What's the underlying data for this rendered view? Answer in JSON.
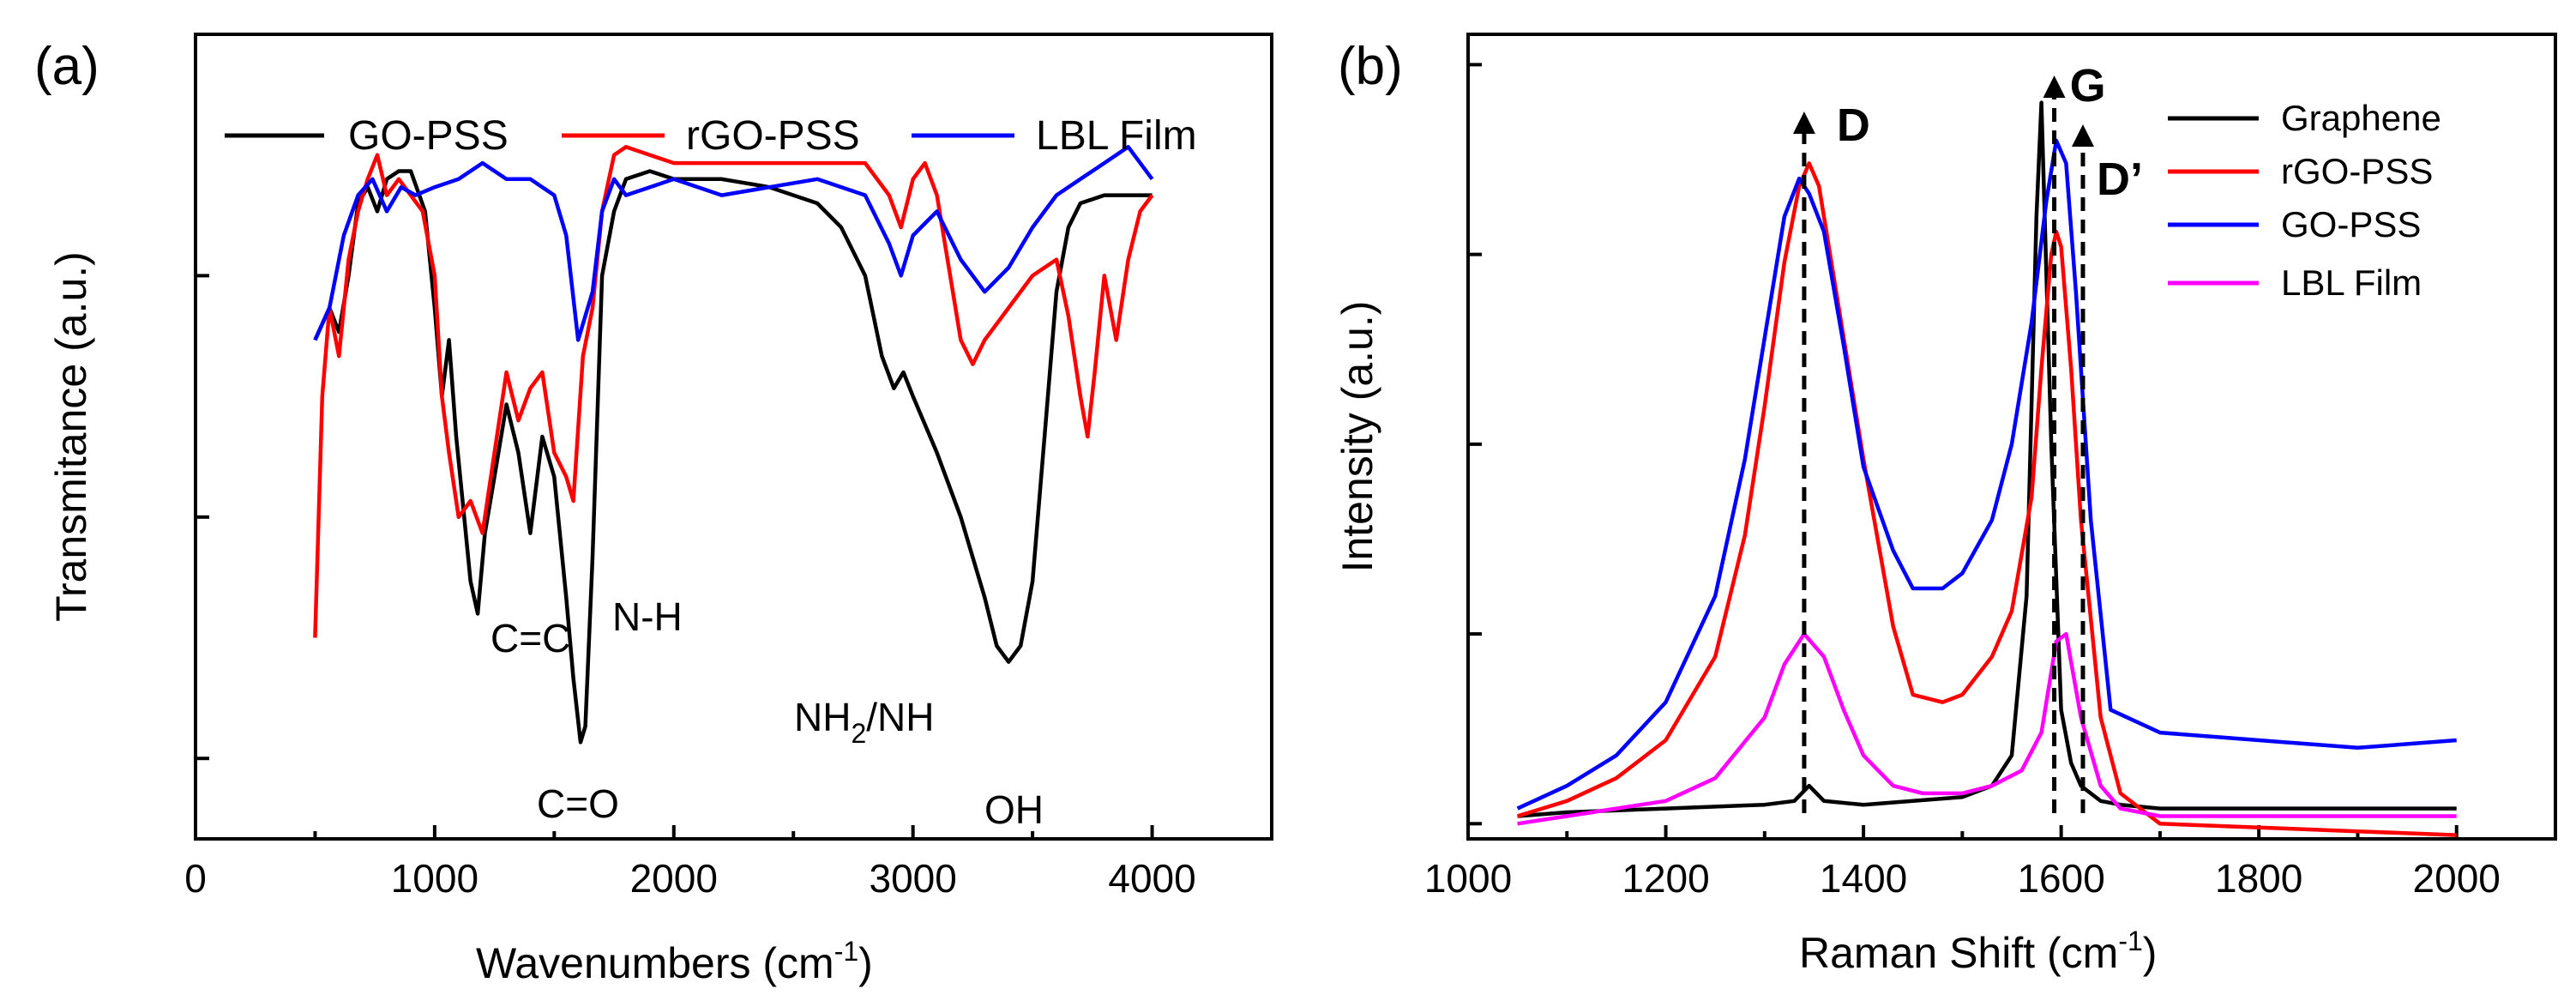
{
  "chart_data": [
    {
      "type": "line",
      "panel_label": "(a)",
      "xlabel": "Wavenumbers (cm",
      "xlabel_sup": "-1",
      "xlabel_tail": ")",
      "ylabel": "Transmitance (a.u.)",
      "xlim": [
        0,
        4500
      ],
      "ylim": [
        0,
        100
      ],
      "xticks": [
        0,
        1000,
        2000,
        3000,
        4000
      ],
      "xtick_labels": [
        "0",
        "1000",
        "2000",
        "3000",
        "4000"
      ],
      "yticks": [
        10,
        40,
        70
      ],
      "legend_position": "top",
      "annotations": {
        "cc": "C=C",
        "nh": "N-H",
        "co": "C=O",
        "nh2_a": "NH",
        "nh2_sub": "2",
        "nh2_b": "/NH",
        "oh": "OH"
      },
      "series": [
        {
          "name": "GO-PSS",
          "color": "#000000",
          "x": [
            500,
            560,
            600,
            640,
            680,
            720,
            760,
            800,
            850,
            900,
            960,
            1000,
            1030,
            1060,
            1090,
            1120,
            1150,
            1180,
            1210,
            1250,
            1300,
            1350,
            1400,
            1450,
            1500,
            1550,
            1580,
            1610,
            1630,
            1660,
            1700,
            1750,
            1800,
            1900,
            2000,
            2200,
            2400,
            2600,
            2700,
            2800,
            2870,
            2920,
            2960,
            3000,
            3100,
            3200,
            3300,
            3350,
            3400,
            3450,
            3500,
            3550,
            3600,
            3650,
            3700,
            3800,
            3900,
            4000
          ],
          "y": [
            62,
            66,
            63,
            70,
            79,
            81,
            78,
            82,
            83,
            83,
            78,
            66,
            55,
            62,
            50,
            41,
            32,
            28,
            38,
            45,
            54,
            48,
            38,
            50,
            45,
            30,
            20,
            12,
            14,
            35,
            70,
            78,
            82,
            83,
            82,
            82,
            81,
            79,
            76,
            70,
            60,
            56,
            58,
            55,
            48,
            40,
            30,
            24,
            22,
            24,
            32,
            50,
            68,
            76,
            79,
            80,
            80,
            80
          ]
        },
        {
          "name": "rGO-PSS",
          "color": "#ff0000",
          "x": [
            500,
            530,
            560,
            600,
            640,
            680,
            720,
            760,
            800,
            850,
            900,
            950,
            1000,
            1030,
            1060,
            1100,
            1150,
            1200,
            1250,
            1300,
            1350,
            1400,
            1450,
            1500,
            1550,
            1580,
            1620,
            1660,
            1700,
            1750,
            1800,
            1900,
            2000,
            2200,
            2400,
            2600,
            2800,
            2900,
            2950,
            3000,
            3050,
            3100,
            3200,
            3250,
            3300,
            3400,
            3500,
            3600,
            3650,
            3700,
            3730,
            3760,
            3800,
            3850,
            3900,
            3950,
            4000
          ],
          "y": [
            25,
            55,
            66,
            60,
            72,
            78,
            82,
            85,
            80,
            82,
            80,
            78,
            70,
            55,
            48,
            40,
            42,
            38,
            48,
            58,
            52,
            56,
            58,
            48,
            45,
            42,
            60,
            66,
            78,
            85,
            86,
            85,
            84,
            84,
            84,
            84,
            84,
            80,
            76,
            82,
            84,
            80,
            62,
            59,
            62,
            66,
            70,
            72,
            65,
            55,
            50,
            58,
            70,
            62,
            72,
            78,
            80
          ]
        },
        {
          "name": "LBL Film",
          "color": "#0000ff",
          "x": [
            500,
            560,
            620,
            680,
            740,
            800,
            860,
            920,
            1000,
            1100,
            1200,
            1300,
            1400,
            1500,
            1550,
            1600,
            1660,
            1700,
            1750,
            1800,
            1900,
            2000,
            2200,
            2400,
            2600,
            2800,
            2900,
            2950,
            3000,
            3100,
            3200,
            3300,
            3400,
            3500,
            3600,
            3700,
            3800,
            3900,
            4000
          ],
          "y": [
            62,
            66,
            75,
            80,
            82,
            78,
            81,
            80,
            81,
            82,
            84,
            82,
            82,
            80,
            75,
            62,
            68,
            78,
            82,
            80,
            81,
            82,
            80,
            81,
            82,
            80,
            74,
            70,
            75,
            78,
            72,
            68,
            71,
            76,
            80,
            82,
            84,
            86,
            82
          ]
        }
      ]
    },
    {
      "type": "line",
      "panel_label": "(b)",
      "xlabel": "Raman Shift (cm",
      "xlabel_sup": "-1",
      "xlabel_tail": ")",
      "ylabel": "Intensity (a.u.)",
      "xlim": [
        1000,
        2100
      ],
      "ylim": [
        -2,
        104
      ],
      "xticks": [
        1000,
        1200,
        1400,
        1600,
        1800,
        2000
      ],
      "xtick_labels": [
        "1000",
        "1200",
        "1400",
        "1600",
        "1800",
        "2000"
      ],
      "yticks": [
        0,
        25,
        50,
        75,
        100
      ],
      "legend_position": "top-right",
      "peak_labels": [
        {
          "label": "D",
          "x": 1340
        },
        {
          "label": "G",
          "x": 1593
        },
        {
          "label": "D’",
          "x": 1622
        }
      ],
      "series": [
        {
          "name": "Graphene",
          "color": "#000000",
          "x": [
            1050,
            1100,
            1200,
            1300,
            1330,
            1345,
            1360,
            1400,
            1450,
            1500,
            1530,
            1550,
            1565,
            1575,
            1580,
            1590,
            1600,
            1610,
            1620,
            1640,
            1660,
            1700,
            1800,
            1900,
            2000
          ],
          "y": [
            1,
            1.5,
            2,
            2.5,
            3,
            5,
            3,
            2.5,
            3,
            3.5,
            5,
            9,
            30,
            80,
            95,
            50,
            15,
            8,
            5,
            3,
            2.5,
            2,
            2,
            2,
            2
          ]
        },
        {
          "name": "rGO-PSS",
          "color": "#ff0000",
          "x": [
            1050,
            1100,
            1150,
            1200,
            1250,
            1280,
            1300,
            1320,
            1335,
            1345,
            1355,
            1370,
            1400,
            1430,
            1450,
            1480,
            1500,
            1530,
            1550,
            1570,
            1580,
            1590,
            1595,
            1600,
            1610,
            1620,
            1640,
            1660,
            1700,
            1800,
            1900,
            2000
          ],
          "y": [
            1,
            3,
            6,
            11,
            22,
            38,
            55,
            74,
            84,
            87,
            84,
            72,
            48,
            26,
            17,
            16,
            17,
            22,
            28,
            43,
            60,
            75,
            78,
            76,
            60,
            40,
            14,
            4,
            0,
            -0.5,
            -1,
            -1.5
          ]
        },
        {
          "name": "GO-PSS",
          "color": "#0000ff",
          "x": [
            1050,
            1100,
            1150,
            1200,
            1250,
            1280,
            1300,
            1320,
            1335,
            1345,
            1360,
            1380,
            1400,
            1430,
            1450,
            1480,
            1500,
            1530,
            1550,
            1570,
            1585,
            1595,
            1605,
            1615,
            1630,
            1650,
            1700,
            1800,
            1900,
            2000
          ],
          "y": [
            2,
            5,
            9,
            16,
            30,
            48,
            64,
            80,
            85,
            83,
            78,
            63,
            47,
            36,
            31,
            31,
            33,
            40,
            50,
            66,
            82,
            90,
            87,
            70,
            40,
            15,
            12,
            11,
            10,
            11
          ]
        },
        {
          "name": "LBL Film",
          "color": "#ff00ff",
          "x": [
            1050,
            1100,
            1150,
            1200,
            1250,
            1300,
            1320,
            1340,
            1360,
            1380,
            1400,
            1430,
            1460,
            1500,
            1530,
            1560,
            1580,
            1595,
            1605,
            1620,
            1640,
            1660,
            1700,
            1800,
            1900,
            2000
          ],
          "y": [
            0,
            1,
            2,
            3,
            6,
            14,
            21,
            25,
            22,
            15,
            9,
            5,
            4,
            4,
            5,
            7,
            12,
            24,
            25,
            14,
            5,
            2,
            1,
            1,
            1,
            1
          ]
        }
      ]
    }
  ]
}
